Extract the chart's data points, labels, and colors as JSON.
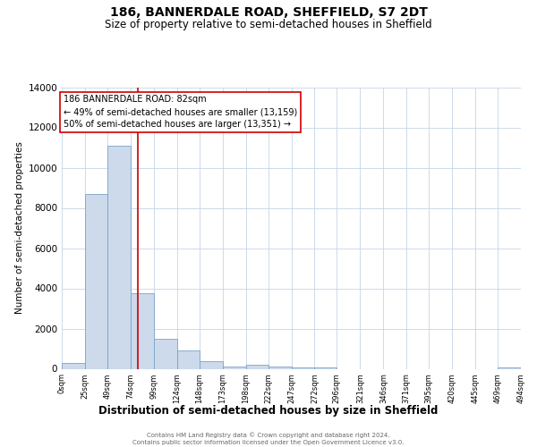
{
  "title": "186, BANNERDALE ROAD, SHEFFIELD, S7 2DT",
  "subtitle": "Size of property relative to semi-detached houses in Sheffield",
  "xlabel": "Distribution of semi-detached houses by size in Sheffield",
  "ylabel": "Number of semi-detached properties",
  "bin_edges": [
    0,
    25,
    49,
    74,
    99,
    124,
    148,
    173,
    198,
    222,
    247,
    272,
    296,
    321,
    346,
    371,
    395,
    420,
    445,
    469,
    494
  ],
  "bar_heights": [
    300,
    8700,
    11100,
    3750,
    1500,
    900,
    400,
    100,
    200,
    100,
    50,
    80,
    0,
    0,
    0,
    0,
    0,
    0,
    0,
    80
  ],
  "bar_color": "#ccdaeb",
  "bar_edge_color": "#7ba3c8",
  "vline_x": 82,
  "vline_color": "#cc0000",
  "annotation_line1": "186 BANNERDALE ROAD: 82sqm",
  "annotation_line2": "← 49% of semi-detached houses are smaller (13,159)",
  "annotation_line3": "50% of semi-detached houses are larger (13,351) →",
  "annotation_box_color": "#ffffff",
  "annotation_box_edge": "#cc0000",
  "ylim": [
    0,
    14000
  ],
  "yticks": [
    0,
    2000,
    4000,
    6000,
    8000,
    10000,
    12000,
    14000
  ],
  "tick_labels": [
    "0sqm",
    "25sqm",
    "49sqm",
    "74sqm",
    "99sqm",
    "124sqm",
    "148sqm",
    "173sqm",
    "198sqm",
    "222sqm",
    "247sqm",
    "272sqm",
    "296sqm",
    "321sqm",
    "346sqm",
    "371sqm",
    "395sqm",
    "420sqm",
    "445sqm",
    "469sqm",
    "494sqm"
  ],
  "background_color": "#ffffff",
  "grid_color": "#c5d5e5",
  "footer_text": "Contains HM Land Registry data © Crown copyright and database right 2024.\nContains public sector information licensed under the Open Government Licence v3.0.",
  "title_fontsize": 10,
  "subtitle_fontsize": 8.5,
  "ylabel_fontsize": 7.5,
  "xlabel_fontsize": 8.5,
  "tick_fontsize": 6,
  "ytick_fontsize": 7.5,
  "annotation_fontsize": 7,
  "footer_fontsize": 5
}
